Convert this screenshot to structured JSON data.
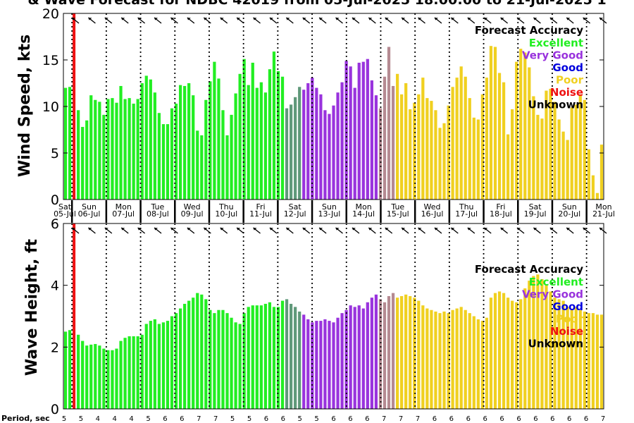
{
  "title": "& Wave Forecast for NDBC 42019 from 05-Jul-2025 18:00:00 to 21-Jul-2025 1",
  "period_label": "Period, sec",
  "days": [
    {
      "dow": "Sat",
      "date": "05-Jul"
    },
    {
      "dow": "Sun",
      "date": "06-Jul"
    },
    {
      "dow": "Mon",
      "date": "07-Jul"
    },
    {
      "dow": "Tue",
      "date": "08-Jul"
    },
    {
      "dow": "Wed",
      "date": "09-Jul"
    },
    {
      "dow": "Thu",
      "date": "10-Jul"
    },
    {
      "dow": "Fri",
      "date": "11-Jul"
    },
    {
      "dow": "Sat",
      "date": "12-Jul"
    },
    {
      "dow": "Sun",
      "date": "13-Jul"
    },
    {
      "dow": "Mon",
      "date": "14-Jul"
    },
    {
      "dow": "Tue",
      "date": "15-Jul"
    },
    {
      "dow": "Wed",
      "date": "16-Jul"
    },
    {
      "dow": "Thu",
      "date": "17-Jul"
    },
    {
      "dow": "Fri",
      "date": "18-Jul"
    },
    {
      "dow": "Sat",
      "date": "19-Jul"
    },
    {
      "dow": "Sun",
      "date": "20-Jul"
    },
    {
      "dow": "Mon",
      "date": "21-Jul"
    }
  ],
  "legend": {
    "title": "Forecast Accuracy",
    "items": [
      {
        "label": "Excellent",
        "color": "#22ee22"
      },
      {
        "label": "Very Good",
        "color": "#9933dd"
      },
      {
        "label": "Good",
        "color": "#0000dd"
      },
      {
        "label": "Poor",
        "color": "#f0d020"
      },
      {
        "label": "Noise",
        "color": "#ee1111"
      },
      {
        "label": "Unknown",
        "color": "#000000"
      }
    ]
  },
  "chart_data": [
    {
      "type": "bar",
      "ylabel": "Wind Speed, kts",
      "ylim": [
        0,
        20
      ],
      "yticks": [
        0,
        5,
        10,
        15,
        20
      ],
      "values": [
        12.0,
        12.1,
        0,
        9.6,
        7.8,
        8.5,
        11.2,
        10.7,
        10.5,
        9.1,
        10.8,
        10.9,
        10.4,
        12.2,
        10.8,
        10.9,
        10.3,
        10.8,
        12.5,
        13.3,
        12.9,
        11.5,
        9.3,
        8.1,
        8.1,
        9.8,
        10.3,
        12.3,
        12.2,
        12.5,
        11.2,
        7.4,
        6.9,
        10.7,
        12.7,
        14.8,
        13.0,
        9.6,
        6.9,
        9.1,
        11.4,
        13.5,
        15.1,
        12.3,
        14.7,
        12.0,
        12.6,
        11.5,
        14.0,
        15.9,
        13.8,
        13.2,
        9.8,
        10.2,
        11.0,
        12.1,
        11.8,
        12.5,
        13.1,
        12.0,
        11.3,
        9.6,
        9.2,
        10.1,
        11.5,
        12.6,
        14.9,
        14.3,
        12.0,
        14.7,
        14.8,
        15.1,
        12.8,
        11.2,
        9.8,
        13.2,
        16.4,
        12.2,
        13.5,
        11.3,
        12.5,
        9.7,
        10.4,
        11.3,
        13.1,
        10.9,
        10.6,
        9.6,
        7.7,
        8.2,
        10.1,
        12.1,
        13.1,
        14.3,
        13.2,
        10.9,
        8.8,
        8.6,
        11.3,
        13.1,
        16.5,
        16.4,
        13.6,
        12.6,
        7.0,
        9.7,
        14.8,
        16.2,
        15.8,
        14.2,
        11.1,
        9.1,
        8.7,
        11.7,
        11.9,
        10.5,
        8.6,
        7.3,
        6.4,
        9.9,
        10.2,
        11.3,
        10.7,
        5.4,
        2.6,
        0.7,
        5.9
      ],
      "arrows": "wind direction arrows along top edge"
    },
    {
      "type": "bar",
      "ylabel": "Wave Height, ft",
      "ylim": [
        0,
        6
      ],
      "yticks": [
        0,
        2,
        4,
        6
      ],
      "values": [
        2.5,
        2.55,
        0,
        2.4,
        2.2,
        2.05,
        2.08,
        2.1,
        2.05,
        1.95,
        1.9,
        1.9,
        1.95,
        2.2,
        2.3,
        2.35,
        2.35,
        2.35,
        2.4,
        2.75,
        2.85,
        2.9,
        2.75,
        2.8,
        2.85,
        3.0,
        3.1,
        3.25,
        3.4,
        3.5,
        3.6,
        3.75,
        3.7,
        3.55,
        3.2,
        3.1,
        3.2,
        3.2,
        3.1,
        2.95,
        2.8,
        2.75,
        3.1,
        3.3,
        3.35,
        3.35,
        3.35,
        3.4,
        3.45,
        3.3,
        3.3,
        3.5,
        3.55,
        3.4,
        3.3,
        3.15,
        3.05,
        2.9,
        2.8,
        2.85,
        2.85,
        2.9,
        2.85,
        2.8,
        2.95,
        3.1,
        3.2,
        3.35,
        3.3,
        3.35,
        3.25,
        3.45,
        3.6,
        3.7,
        3.55,
        3.45,
        3.65,
        3.75,
        3.6,
        3.65,
        3.7,
        3.65,
        3.6,
        3.5,
        3.35,
        3.25,
        3.2,
        3.15,
        3.1,
        3.15,
        3.1,
        3.2,
        3.25,
        3.3,
        3.2,
        3.1,
        3.0,
        2.9,
        2.85,
        2.95,
        3.6,
        3.75,
        3.8,
        3.75,
        3.6,
        3.5,
        3.45,
        3.55,
        3.9,
        4.15,
        4.3,
        4.35,
        4.2,
        4.0,
        3.8,
        3.6,
        3.55,
        3.5,
        3.3,
        3.2,
        3.3,
        3.2,
        3.15,
        3.1,
        3.1,
        3.05,
        3.05
      ]
    }
  ],
  "periods": [
    "5",
    "5",
    "4",
    "4",
    "4",
    "5",
    "6",
    "6",
    "7",
    "7",
    "5",
    "5",
    "6",
    "6",
    "5",
    "5",
    "6",
    "6",
    "6",
    "7",
    "7",
    "7",
    "6",
    "6",
    "6",
    "6",
    "6",
    "6",
    "6",
    "6",
    "6",
    "6",
    "7"
  ],
  "colors": {
    "excellent": "#22ee22",
    "very_good": "#9933dd",
    "good": "#0000dd",
    "poor": "#f0d020",
    "noise": "#ee1111",
    "transition_1": "#60997a",
    "transition_2": "#b58a92"
  }
}
